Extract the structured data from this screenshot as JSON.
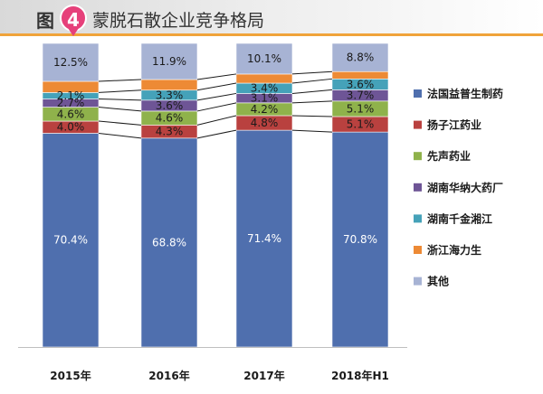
{
  "header": {
    "title_prefix": "图",
    "badge_number": "4",
    "title": "蒙脱石散企业竞争格局"
  },
  "chart_data": {
    "type": "bar",
    "stacked": true,
    "title": "蒙脱石散企业竞争格局",
    "categories": [
      "2015年",
      "2016年",
      "2017年",
      "2018年H1"
    ],
    "unit": "%",
    "ylim": [
      0,
      100
    ],
    "grid": false,
    "legend_position": "right",
    "series": [
      {
        "name": "法国益普生制药",
        "color": "#4f6fae",
        "values": [
          70.4,
          68.8,
          71.4,
          70.8
        ],
        "labels": [
          "70.4%",
          "68.8%",
          "71.4%",
          "70.8%"
        ]
      },
      {
        "name": "扬子江药业",
        "color": "#b9413f",
        "values": [
          4.0,
          4.3,
          4.8,
          5.1
        ],
        "labels": [
          "4.0%",
          "4.3%",
          "4.8%",
          "5.1%"
        ]
      },
      {
        "name": "先声药业",
        "color": "#8fb24b",
        "values": [
          4.6,
          4.6,
          4.2,
          5.1
        ],
        "labels": [
          "4.6%",
          "4.6%",
          "4.2%",
          "5.1%"
        ]
      },
      {
        "name": "湖南华纳大药厂",
        "color": "#6e5596",
        "values": [
          2.7,
          3.6,
          3.1,
          3.7
        ],
        "labels": [
          "2.7%",
          "3.6%",
          "3.1%",
          "3.7%"
        ]
      },
      {
        "name": "湖南千金湘江",
        "color": "#45a2b9",
        "values": [
          2.1,
          3.3,
          3.4,
          3.6
        ],
        "labels": [
          "2.1%",
          "3.3%",
          "3.4%",
          "3.6%"
        ]
      },
      {
        "name": "浙江海力生",
        "color": "#ed8a35",
        "values": [
          3.7,
          3.5,
          3.0,
          2.4
        ],
        "labels": [
          "",
          "",
          "",
          ""
        ]
      },
      {
        "name": "其他",
        "color": "#a7b3d4",
        "values": [
          12.5,
          11.9,
          10.1,
          8.8
        ],
        "labels": [
          "12.5%",
          "11.9%",
          "10.1%",
          "8.8%"
        ]
      }
    ]
  }
}
